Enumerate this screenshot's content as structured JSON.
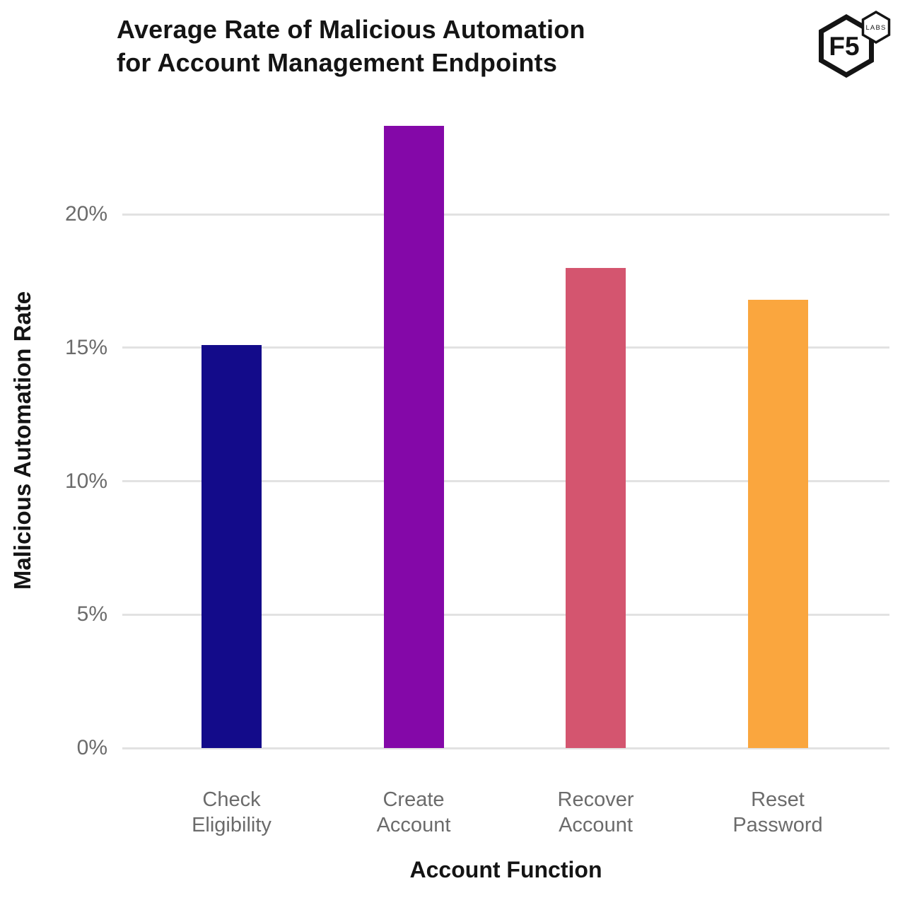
{
  "header": {
    "title_lines": [
      "Average Rate of Malicious Automation",
      "for Account Management Endpoints"
    ],
    "logo": {
      "main": "F5",
      "sub": "LABS"
    }
  },
  "chart_data": {
    "type": "bar",
    "title": "Average Rate of Malicious Automation for Account Management Endpoints",
    "xlabel": "Account Function",
    "ylabel": "Malicious Automation Rate",
    "categories": [
      "Check Eligibility",
      "Create Account",
      "Recover Account",
      "Reset Password"
    ],
    "category_lines": [
      [
        "Check",
        "Eligibility"
      ],
      [
        "Create",
        "Account"
      ],
      [
        "Recover",
        "Account"
      ],
      [
        "Reset",
        "Password"
      ]
    ],
    "values": [
      15.1,
      23.3,
      18.0,
      16.8
    ],
    "unit": "%",
    "bar_colors": [
      "#130B8A",
      "#8408A8",
      "#D4556F",
      "#FAA63E"
    ],
    "yticks": [
      0,
      5,
      10,
      15,
      20
    ],
    "ytick_labels": [
      "0%",
      "5%",
      "10%",
      "15%",
      "20%"
    ],
    "ylim": [
      0,
      24.3
    ],
    "grid": true,
    "legend": false,
    "colors": {
      "gridline": "#e2e2e2",
      "tick_text": "#6b6b6b",
      "title_text": "#141414"
    }
  }
}
